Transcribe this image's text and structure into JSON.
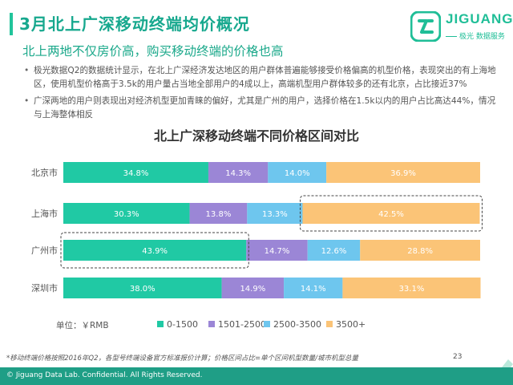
{
  "header": {
    "title": "3月北上广深移动终端均价概况",
    "subtitle": "北上两地不仅房价高，购买移动终端的价格也高"
  },
  "logo": {
    "name": "JIGUANG",
    "tagline": "极光 数据服务"
  },
  "bullets": [
    {
      "text": "极光数据Q2的数据统计显示，在北上广深经济发达地区的用户群体普遍能够接受价格偏高的机型价格，表现突出的有上海地区，使用机型价格高于3.5k的用户量占当地全部用户的4成以上，高端机型用户群体较多的还有北京，占比接近37%"
    },
    {
      "text": "广深两地的用户则表现出对经济机型更加青睐的偏好，尤其是广州的用户，选择价格在1.5k以内的用户占比高达44%，情况与上海整体相反"
    }
  ],
  "chart_data": {
    "type": "bar",
    "orientation": "horizontal",
    "stacked": true,
    "title": "北上广深移动终端不同价格区间对比",
    "categories": [
      "北京市",
      "上海市",
      "广州市",
      "深圳市"
    ],
    "series": [
      {
        "name": "0-1500",
        "color": "#20c9a4",
        "values": [
          34.8,
          30.3,
          43.9,
          38.0
        ],
        "labels": [
          "34.8%",
          "30.3%",
          "43.9%",
          "38.0%"
        ]
      },
      {
        "name": "1501-2500",
        "color": "#9b86d6",
        "values": [
          14.3,
          13.8,
          14.7,
          14.9
        ],
        "labels": [
          "14.3%",
          "13.8%",
          "14.7%",
          "14.9%"
        ]
      },
      {
        "name": "2500-3500",
        "color": "#6ec6ee",
        "values": [
          14.0,
          13.3,
          12.6,
          14.1
        ],
        "labels": [
          "14.0%",
          "13.3%",
          "12.6%",
          "14.1%"
        ]
      },
      {
        "name": "3500+",
        "color": "#fbc477",
        "values": [
          36.9,
          42.5,
          28.8,
          33.1
        ],
        "labels": [
          "36.9%",
          "42.5%",
          "28.8%",
          "33.1%"
        ]
      }
    ],
    "xlim": [
      0,
      100
    ],
    "unit_label": "单位：￥RMB",
    "legend_position": "bottom",
    "highlights": [
      {
        "category": "上海市",
        "series": "3500+"
      },
      {
        "category": "广州市",
        "series": "0-1500"
      }
    ]
  },
  "footnote": "*移动终端价格按照2016年Q2，各型号终端设备官方标准报价计算；价格区间占比=单个区间机型数量/城市机型总量",
  "footer": {
    "copyright": "© Jiguang Data Lab. Confidential. All Rights Reserved.",
    "page_number": "23"
  }
}
